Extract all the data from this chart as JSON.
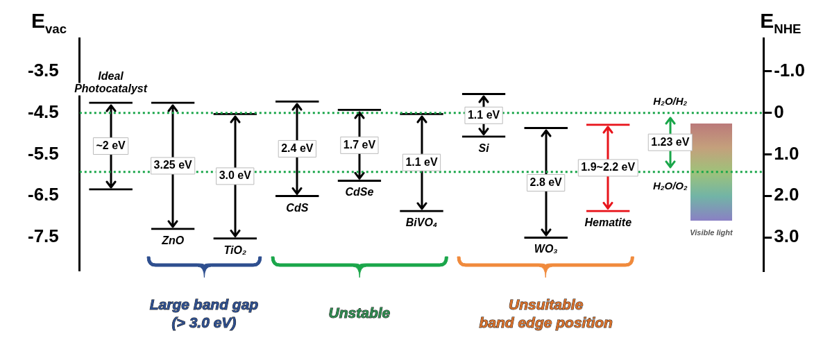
{
  "chart_data": {
    "type": "bar",
    "ylabel": "E$_{vac}$",
    "y2label": "E$_{NHE}$",
    "categories": [
      "Ideal Photocatalyst",
      "ZnO",
      "TiO₂",
      "CdS",
      "CdSe",
      "BiVO₄",
      "Si",
      "WO₃",
      "Hematite",
      null,
      null
    ],
    "base": [
      -6.37,
      -7.32,
      -7.55,
      -6.53,
      -6.16,
      -6.89,
      -5.1,
      -7.53,
      -6.89,
      null,
      null
    ],
    "values": [
      2.14,
      3.09,
      3.05,
      2.33,
      1.76,
      2.39,
      1.08,
      2.69,
      2.13,
      null,
      null
    ],
    "colors": [
      "#000000",
      "#000000",
      "#000000",
      "#000000",
      "#000000",
      "#000000",
      "#000000",
      "#000000",
      "#e8141b",
      "#000000",
      "#000000"
    ],
    "ylim": [
      -8.3,
      -2.7
    ],
    "yticks": [
      -3.5,
      -4.5,
      -5.5,
      -6.5,
      -7.5
    ],
    "y2lim": [
      3.8,
      -1.8
    ],
    "y2ticks": [
      {
        "value": -1,
        "label": "-1.0"
      },
      0,
      {
        "value": 1,
        "label": "1.0"
      },
      {
        "value": 2,
        "label": "2.0"
      },
      {
        "value": 3,
        "label": "3.0"
      }
    ],
    "ref_lines": [
      {
        "axis": "y",
        "value": -4.5,
        "label": "H₂O/H₂",
        "color": "#1aa64a",
        "line_style": "dotted"
      },
      {
        "axis": "y",
        "value": -5.92,
        "label": "H₂O/O₂",
        "color": "#1aa64a",
        "line_style": "dotted"
      }
    ],
    "annotations": [
      "~2 eV",
      "3.25 eV",
      "3.0 eV",
      "2.4 eV",
      "1.7 eV",
      "1.1 eV",
      "1.1 eV",
      "2.8 eV",
      "1.9~2.2 eV",
      "1.23 eV",
      "Large band gap\n(> 3.0 eV)",
      "Unstable",
      "Unsuitable\nband edge position",
      "Visible light"
    ],
    "grid": false,
    "legend": false
  }
}
